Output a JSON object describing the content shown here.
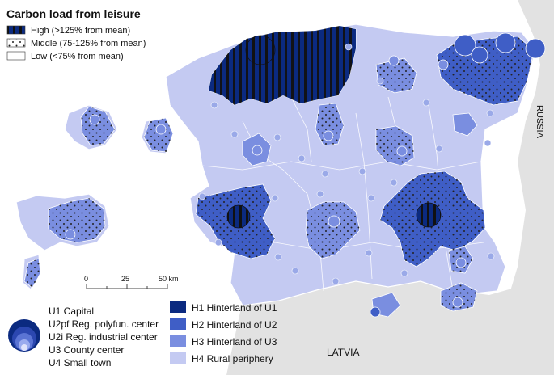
{
  "title": "Carbon load from leisure",
  "legend_pattern": {
    "high": "High (>125% from mean)",
    "middle": "Middle (75-125% from mean)",
    "low": "Low (<75% from mean)"
  },
  "scale": {
    "ticks": [
      "0",
      "25",
      "50 km"
    ]
  },
  "legend_centers": {
    "items": [
      "U1 Capital",
      "U2pf Reg. polyfun. center",
      "U2i Reg. industrial center",
      "U3 County center",
      "U4 Small town"
    ]
  },
  "legend_hinterland": {
    "items": [
      {
        "label": "H1 Hinterland of U1",
        "color": "#0b2a80"
      },
      {
        "label": "H2 Hinterland of U2",
        "color": "#3f5ec6"
      },
      {
        "label": "H3 Hinterland of U3",
        "color": "#7a8ee0"
      },
      {
        "label": "H4 Rural periphery",
        "color": "#c4caf2"
      }
    ]
  },
  "countries": {
    "russia": "RUSSIA",
    "latvia": "LATVIA"
  },
  "colors": {
    "sea": "#ffffff",
    "land_outside": "#e2e2e2",
    "h1": "#0b2a80",
    "h2": "#3f5ec6",
    "h3": "#7a8ee0",
    "h4": "#c4caf2",
    "border": "#ffffff"
  }
}
